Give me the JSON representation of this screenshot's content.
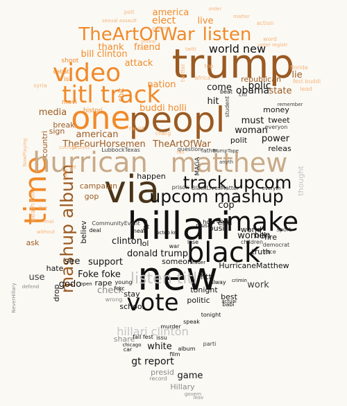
{
  "palette": {
    "background": "#fbf9f4",
    "black": "#111111",
    "dark_gray": "#3b3b3b",
    "gray": "#8a8a8a",
    "light_gray": "#c4c4c4",
    "orange": "#f08a2a",
    "light_orange": "#f5b47a",
    "pale_orange": "#f3c9a0",
    "brown": "#9a5a22",
    "dark_brown": "#4a3418",
    "tan": "#c8aa88"
  },
  "words": [
    {
      "text": "trump",
      "size": 58,
      "color": "brown"
    },
    {
      "text": "new",
      "size": 56,
      "color": "black"
    },
    {
      "text": "hillari",
      "size": 54,
      "color": "black"
    },
    {
      "text": "via",
      "size": 54,
      "color": "dark_brown"
    },
    {
      "text": "peopl",
      "size": 50,
      "color": "brown"
    },
    {
      "text": "one",
      "size": 46,
      "color": "orange"
    },
    {
      "text": "time",
      "size": 44,
      "color": "orange"
    },
    {
      "text": "hurrican",
      "size": 40,
      "color": "tan"
    },
    {
      "text": "matthew",
      "size": 38,
      "color": "tan"
    },
    {
      "text": "black",
      "size": 40,
      "color": "black"
    },
    {
      "text": "make",
      "size": 38,
      "color": "black"
    },
    {
      "text": "vote",
      "size": 34,
      "color": "black"
    },
    {
      "text": "video",
      "size": 36,
      "color": "orange"
    },
    {
      "text": "titl",
      "size": 34,
      "color": "orange"
    },
    {
      "text": "track",
      "size": 34,
      "color": "orange"
    },
    {
      "text": "TheArtOfWar",
      "size": 26,
      "color": "orange"
    },
    {
      "text": "listen",
      "size": 26,
      "color": "orange"
    },
    {
      "text": "track upcom",
      "size": 25,
      "color": "black"
    },
    {
      "text": "upcom mashup",
      "size": 25,
      "color": "black"
    },
    {
      "text": "mashup album",
      "size": 25,
      "color": "brown"
    },
    {
      "text": "listen titl",
      "size": 22,
      "color": "light_gray"
    },
    {
      "text": "hillari clinton",
      "size": 16,
      "color": "light_gray"
    },
    {
      "text": "world new",
      "size": 16,
      "color": "black"
    },
    {
      "text": "america",
      "size": 13,
      "color": "orange"
    },
    {
      "text": "elect",
      "size": 14,
      "color": "orange"
    },
    {
      "text": "live",
      "size": 13,
      "color": "orange"
    },
    {
      "text": "thank",
      "size": 13,
      "color": "orange"
    },
    {
      "text": "friend",
      "size": 13,
      "color": "orange"
    },
    {
      "text": "bill clinton",
      "size": 13,
      "color": "orange"
    },
    {
      "text": "attack",
      "size": 13,
      "color": "orange"
    },
    {
      "text": "nation",
      "size": 13,
      "color": "orange"
    },
    {
      "text": "buddi holli",
      "size": 13,
      "color": "orange"
    },
    {
      "text": "TheFourHorsemen",
      "size": 13,
      "color": "brown"
    },
    {
      "text": "TheArtOfWar",
      "size": 13,
      "color": "brown"
    },
    {
      "text": "media",
      "size": 13,
      "color": "brown"
    },
    {
      "text": "american",
      "size": 13,
      "color": "brown"
    },
    {
      "text": "break",
      "size": 11,
      "color": "brown"
    },
    {
      "text": "sign",
      "size": 11,
      "color": "brown"
    },
    {
      "text": "countri",
      "size": 11,
      "color": "brown"
    },
    {
      "text": "gop",
      "size": 11,
      "color": "brown"
    },
    {
      "text": "campaign",
      "size": 11,
      "color": "brown"
    },
    {
      "text": "happen",
      "size": 11,
      "color": "black"
    },
    {
      "text": "cop",
      "size": 13,
      "color": "black"
    },
    {
      "text": "come",
      "size": 13,
      "color": "black"
    },
    {
      "text": "end",
      "size": 11,
      "color": "black"
    },
    {
      "text": "obama",
      "size": 14,
      "color": "black"
    },
    {
      "text": "hit",
      "size": 13,
      "color": "black"
    },
    {
      "text": "polic",
      "size": 14,
      "color": "black"
    },
    {
      "text": "must",
      "size": 13,
      "color": "black"
    },
    {
      "text": "woman",
      "size": 13,
      "color": "black"
    },
    {
      "text": "money",
      "size": 11,
      "color": "black"
    },
    {
      "text": "tweet",
      "size": 11,
      "color": "black"
    },
    {
      "text": "polit",
      "size": 11,
      "color": "black"
    },
    {
      "text": "power",
      "size": 13,
      "color": "black"
    },
    {
      "text": "releas",
      "size": 11,
      "color": "black"
    },
    {
      "text": "state",
      "size": 13,
      "color": "brown"
    },
    {
      "text": "lie",
      "size": 13,
      "color": "brown"
    },
    {
      "text": "republican",
      "size": 11,
      "color": "brown"
    },
    {
      "text": "women",
      "size": 13,
      "color": "black"
    },
    {
      "text": "world",
      "size": 11,
      "color": "black"
    },
    {
      "text": "bill",
      "size": 11,
      "color": "black"
    },
    {
      "text": "fire",
      "size": 11,
      "color": "black"
    },
    {
      "text": "clinton",
      "size": 13,
      "color": "black"
    },
    {
      "text": "lol",
      "size": 11,
      "color": "black"
    },
    {
      "text": "busi",
      "size": 11,
      "color": "black"
    },
    {
      "text": "donald trump",
      "size": 13,
      "color": "black"
    },
    {
      "text": "support",
      "size": 13,
      "color": "black"
    },
    {
      "text": "see",
      "size": 13,
      "color": "black"
    },
    {
      "text": "Foke foke",
      "size": 13,
      "color": "black"
    },
    {
      "text": "godo",
      "size": 13,
      "color": "black"
    },
    {
      "text": "use",
      "size": 13,
      "color": "dark_gray"
    },
    {
      "text": "check",
      "size": 13,
      "color": "gray"
    },
    {
      "text": "stay",
      "size": 11,
      "color": "black"
    },
    {
      "text": "school",
      "size": 11,
      "color": "black"
    },
    {
      "text": "tonight",
      "size": 11,
      "color": "black"
    },
    {
      "text": "politic",
      "size": 11,
      "color": "black"
    },
    {
      "text": "truth",
      "size": 11,
      "color": "black"
    },
    {
      "text": "HurricaneMatthew",
      "size": 11,
      "color": "black"
    },
    {
      "text": "htt",
      "size": 11,
      "color": "black"
    },
    {
      "text": "work",
      "size": 13,
      "color": "dark_gray"
    },
    {
      "text": "best",
      "size": 11,
      "color": "black"
    },
    {
      "text": "someon",
      "size": 11,
      "color": "black"
    },
    {
      "text": "white",
      "size": 13,
      "color": "black"
    },
    {
      "text": "gt report",
      "size": 14,
      "color": "black"
    },
    {
      "text": "game",
      "size": 13,
      "color": "black"
    },
    {
      "text": "Hillary",
      "size": 11,
      "color": "gray"
    },
    {
      "text": "presid",
      "size": 11,
      "color": "gray"
    },
    {
      "text": "share",
      "size": 11,
      "color": "gray"
    },
    {
      "text": "record",
      "size": 8,
      "color": "gray"
    },
    {
      "text": "MAGA",
      "size": 9,
      "color": "black"
    },
    {
      "text": "LubbockTexas",
      "size": 8,
      "color": "dark_gray"
    },
    {
      "text": "CommunityEvent",
      "size": 8,
      "color": "dark_gray"
    },
    {
      "text": "BlackLivesMatter",
      "size": 8,
      "color": "dark_gray"
    },
    {
      "text": "prison",
      "size": 8,
      "color": "dark_gray"
    },
    {
      "text": "NeverHillary",
      "size": 7,
      "color": "gray"
    },
    {
      "text": "NowPlaying",
      "size": 7,
      "color": "light_orange"
    },
    {
      "text": "question",
      "size": 8,
      "color": "dark_gray"
    },
    {
      "text": "father",
      "size": 8,
      "color": "dark_gray"
    },
    {
      "text": "TrumpTape",
      "size": 7,
      "color": "dark_gray"
    },
    {
      "text": "charg",
      "size": 8,
      "color": "light_orange"
    },
    {
      "text": "racist",
      "size": 8,
      "color": "light_orange"
    },
    {
      "text": "shit",
      "size": 11,
      "color": "orange"
    },
    {
      "text": "histori",
      "size": 9,
      "color": "orange"
    },
    {
      "text": "movi",
      "size": 9,
      "color": "orange"
    },
    {
      "text": "debat",
      "size": 8,
      "color": "orange"
    },
    {
      "text": "shoot",
      "size": 9,
      "color": "orange"
    },
    {
      "text": "isi",
      "size": 9,
      "color": "orange"
    },
    {
      "text": "syria",
      "size": 8,
      "color": "light_orange"
    },
    {
      "text": "poll",
      "size": 8,
      "color": "light_orange"
    },
    {
      "text": "sexual assault",
      "size": 7,
      "color": "light_orange"
    },
    {
      "text": "protest",
      "size": 7,
      "color": "light_orange"
    },
    {
      "text": "reveal",
      "size": 7,
      "color": "light_orange"
    },
    {
      "text": "true",
      "size": 7,
      "color": "light_orange"
    },
    {
      "text": "twitter",
      "size": 8,
      "color": "light_orange"
    },
    {
      "text": "top",
      "size": 8,
      "color": "light_orange"
    },
    {
      "text": "africa",
      "size": 8,
      "color": "light_orange"
    },
    {
      "text": "action",
      "size": 8,
      "color": "light_orange"
    },
    {
      "text": "word",
      "size": 8,
      "color": "light_orange"
    },
    {
      "text": "florida",
      "size": 8,
      "color": "light_orange"
    },
    {
      "text": "fest buddi",
      "size": 8,
      "color": "light_orange"
    },
    {
      "text": "lead",
      "size": 8,
      "color": "light_orange"
    },
    {
      "text": "matter",
      "size": 7,
      "color": "light_orange"
    },
    {
      "text": "order",
      "size": 7,
      "color": "light_orange"
    },
    {
      "text": "voter registr",
      "size": 7,
      "color": "light_orange"
    },
    {
      "text": "fuck",
      "size": 8,
      "color": "light_orange"
    },
    {
      "text": "die",
      "size": 8,
      "color": "light_orange"
    },
    {
      "text": "corrupt",
      "size": 7,
      "color": "light_orange"
    },
    {
      "text": "protect",
      "size": 7,
      "color": "light_orange"
    },
    {
      "text": "death toll",
      "size": 9,
      "color": "light_orange"
    },
    {
      "text": "fall",
      "size": 7,
      "color": "light_orange"
    },
    {
      "text": "citi",
      "size": 8,
      "color": "dark_gray"
    },
    {
      "text": "student",
      "size": 8,
      "color": "dark_gray"
    },
    {
      "text": "everyon",
      "size": 8,
      "color": "dark_gray"
    },
    {
      "text": "democrat",
      "size": 8,
      "color": "dark_gray"
    },
    {
      "text": "children",
      "size": 8,
      "color": "dark_gray"
    },
    {
      "text": "race",
      "size": 8,
      "color": "dark_gray"
    },
    {
      "text": "sport",
      "size": 8,
      "color": "dark_gray"
    },
    {
      "text": "thought",
      "size": 11,
      "color": "light_gray"
    },
    {
      "text": "rape",
      "size": 11,
      "color": "black"
    },
    {
      "text": "young",
      "size": 8,
      "color": "black"
    },
    {
      "text": "forc",
      "size": 8,
      "color": "black"
    },
    {
      "text": "murder",
      "size": 8,
      "color": "black"
    },
    {
      "text": "tonight",
      "size": 8,
      "color": "black"
    },
    {
      "text": "babi",
      "size": 8,
      "color": "black"
    },
    {
      "text": "speak",
      "size": 8,
      "color": "black"
    },
    {
      "text": "issu",
      "size": 8,
      "color": "black"
    },
    {
      "text": "fall fest",
      "size": 8,
      "color": "black"
    },
    {
      "text": "car",
      "size": 8,
      "color": "black"
    },
    {
      "text": "album",
      "size": 8,
      "color": "black"
    },
    {
      "text": "film",
      "size": 8,
      "color": "black"
    },
    {
      "text": "parti",
      "size": 8,
      "color": "dark_gray"
    },
    {
      "text": "govern",
      "size": 7,
      "color": "gray"
    },
    {
      "text": "leav",
      "size": 7,
      "color": "gray"
    },
    {
      "text": "hate",
      "size": 11,
      "color": "black"
    },
    {
      "text": "ask",
      "size": 11,
      "color": "brown"
    },
    {
      "text": "drop",
      "size": 11,
      "color": "black"
    },
    {
      "text": "deal",
      "size": 8,
      "color": "black"
    },
    {
      "text": "believ",
      "size": 11,
      "color": "black"
    },
    {
      "text": "music",
      "size": 8,
      "color": "black"
    },
    {
      "text": "lose",
      "size": 8,
      "color": "black"
    },
    {
      "text": "war",
      "size": 8,
      "color": "black"
    },
    {
      "text": "leader",
      "size": 7,
      "color": "black"
    },
    {
      "text": "hold",
      "size": 8,
      "color": "black"
    },
    {
      "text": "done",
      "size": 8,
      "color": "black"
    },
    {
      "text": "near",
      "size": 8,
      "color": "black"
    },
    {
      "text": "gt",
      "size": 8,
      "color": "black"
    },
    {
      "text": "fact",
      "size": 8,
      "color": "black"
    },
    {
      "text": "beat",
      "size": 8,
      "color": "black"
    },
    {
      "text": "alway",
      "size": 8,
      "color": "black"
    },
    {
      "text": "crimin",
      "size": 7,
      "color": "black"
    },
    {
      "text": "wrong",
      "size": 8,
      "color": "gray"
    },
    {
      "text": "defend",
      "size": 7,
      "color": "gray"
    },
    {
      "text": "open",
      "size": 7,
      "color": "black"
    },
    {
      "text": "actual",
      "size": 7,
      "color": "black"
    },
    {
      "text": "chicago",
      "size": 7,
      "color": "black"
    },
    {
      "text": "octob",
      "size": 7,
      "color": "black"
    },
    {
      "text": "kn",
      "size": 7,
      "color": "black"
    },
    {
      "text": "final",
      "size": 7,
      "color": "light_orange"
    },
    {
      "text": "live",
      "size": 7,
      "color": "light_orange"
    },
    {
      "text": "everyth",
      "size": 7,
      "color": "black"
    },
    {
      "text": "without",
      "size": 7,
      "color": "light_orange"
    },
    {
      "text": "remember",
      "size": 7,
      "color": "dark_gray"
    },
    {
      "text": "anyth",
      "size": 7,
      "color": "dark_gray"
    },
    {
      "text": "twitt",
      "size": 7,
      "color": "light_orange"
    }
  ]
}
